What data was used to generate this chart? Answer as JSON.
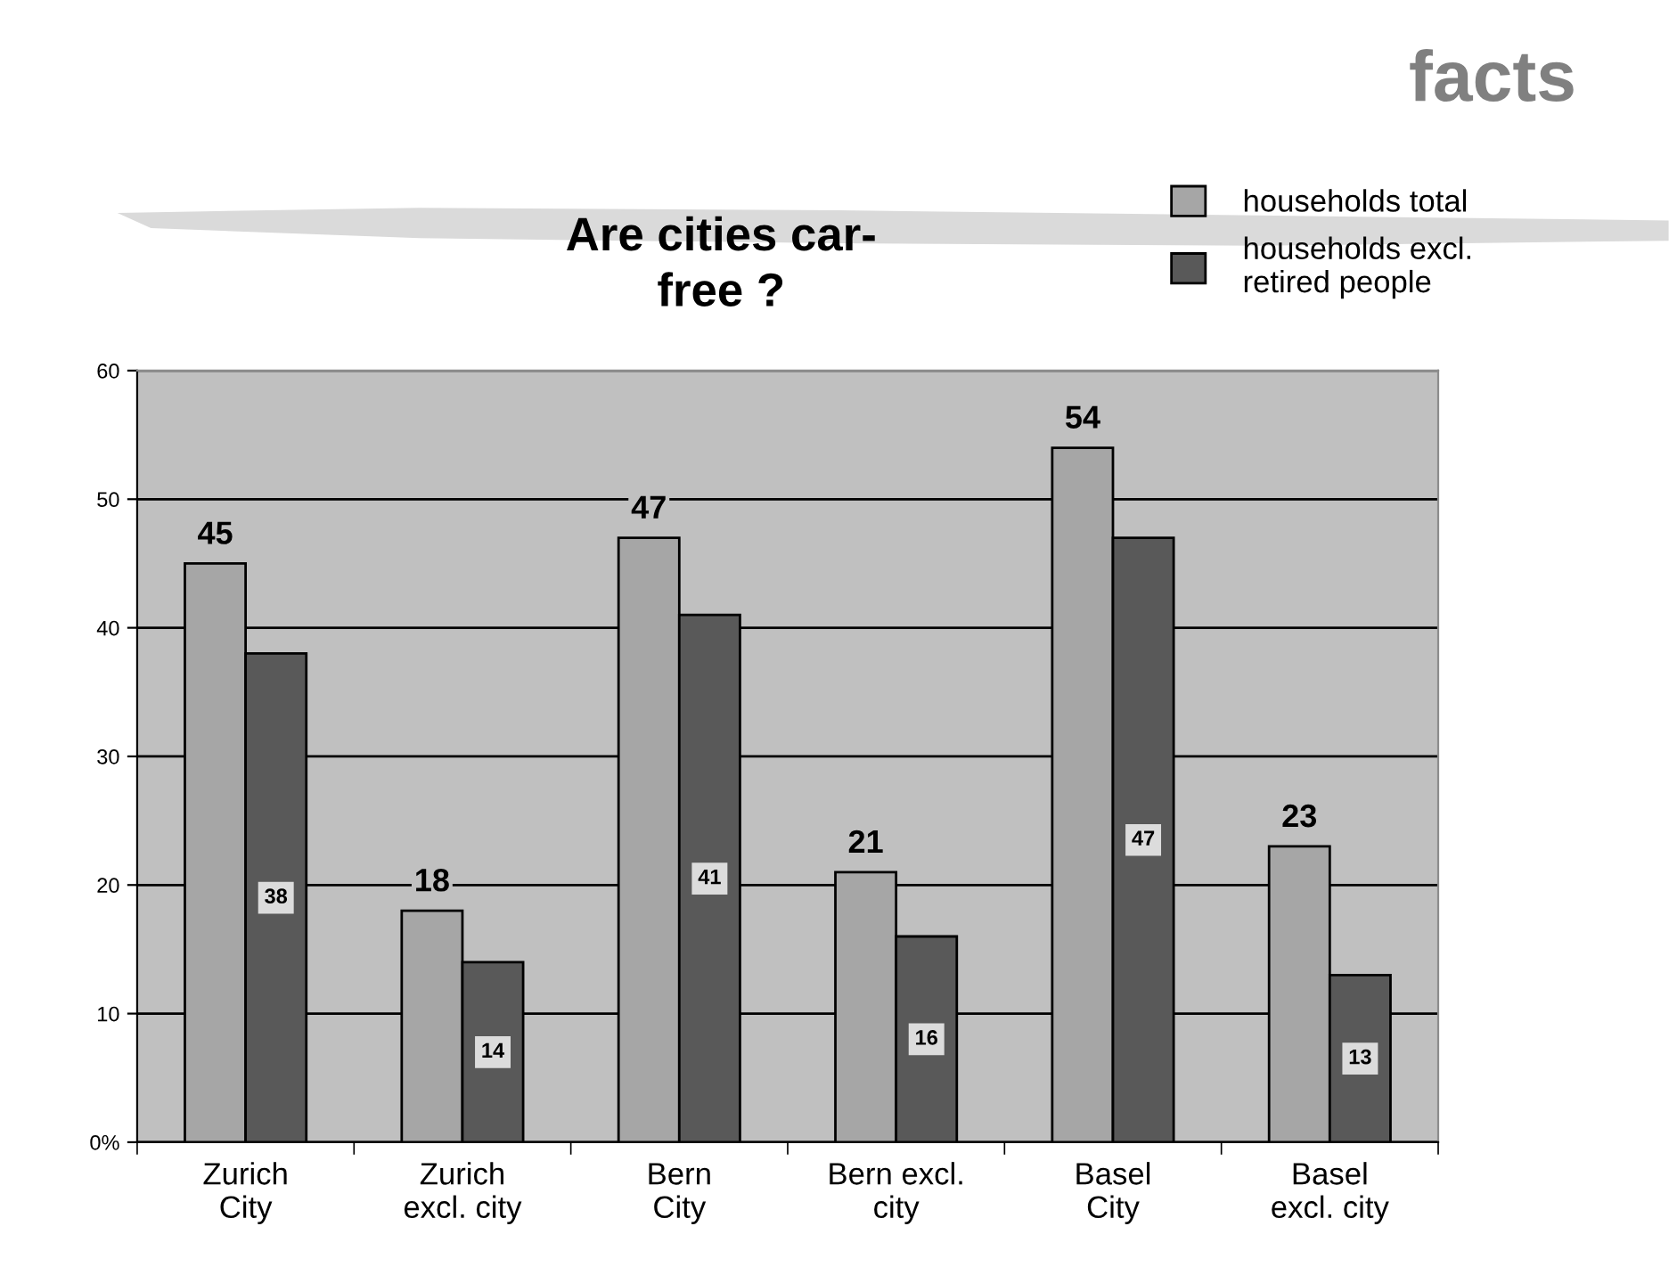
{
  "chart_data": {
    "type": "bar",
    "title": "Are cities car-\nfree ?",
    "annotations": [
      "facts"
    ],
    "categories": [
      "Zurich\nCity",
      "Zurich\nexcl. city",
      "Bern\nCity",
      "Bern excl.\ncity",
      "Basel\nCity",
      "Basel\nexcl. city"
    ],
    "series": [
      {
        "name": "households total",
        "color": "#a6a6a6",
        "values": [
          45,
          18,
          47,
          21,
          54,
          23
        ]
      },
      {
        "name": "households excl.\nretired people",
        "color": "#595959",
        "values": [
          38,
          14,
          41,
          16,
          47,
          13
        ]
      }
    ],
    "ylim": [
      0,
      60
    ],
    "yticks": [
      {
        "value": 0,
        "label": "0%"
      },
      10,
      20,
      30,
      40,
      50,
      60
    ],
    "grid": "y",
    "legend": "top right",
    "data_labels": true
  }
}
